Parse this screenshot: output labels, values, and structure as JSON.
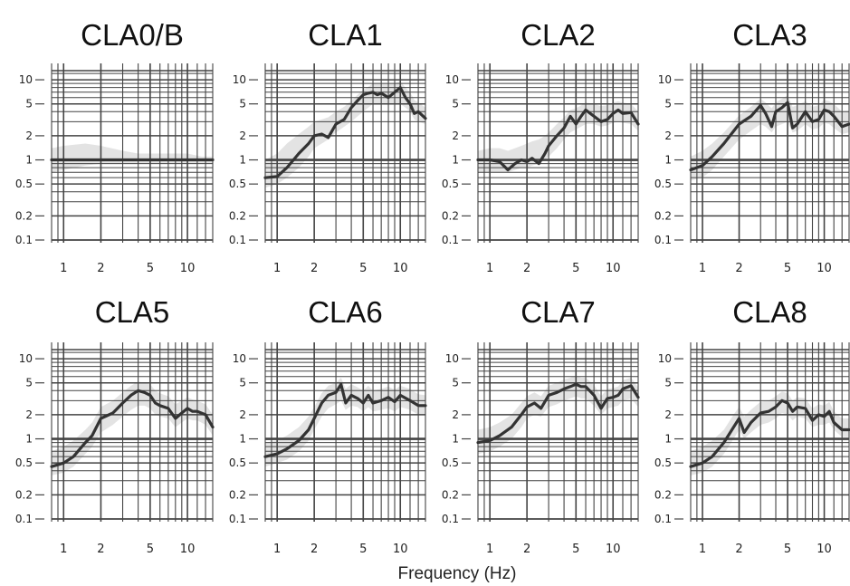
{
  "xlabel": "Frequency (Hz)",
  "chart_data": {
    "type": "line",
    "xlabel": "Frequency (Hz)",
    "xscale": "log",
    "yscale": "log",
    "xlim": [
      0.8,
      16
    ],
    "ylim": [
      0.1,
      13
    ],
    "xticks": [
      1,
      2,
      5,
      10
    ],
    "yticks": [
      0.1,
      0.2,
      0.5,
      1,
      2,
      5,
      10
    ],
    "xtick_labels": [
      "1",
      "2",
      "5",
      "10"
    ],
    "ytick_labels": [
      "0.1",
      "0.2",
      "0.5",
      "1",
      "2",
      "5",
      "10"
    ],
    "grid": true,
    "colors": {
      "line": "#333333",
      "band": "#e3e3e3",
      "grid": "#444444"
    },
    "panels": [
      {
        "title": "CLA0/B",
        "x": [
          0.8,
          1,
          1.5,
          2,
          3,
          4,
          5,
          7,
          10,
          13,
          16
        ],
        "y": [
          1,
          1,
          1,
          1,
          1,
          1,
          1,
          1,
          1,
          1,
          1
        ],
        "band_lo": [
          0.7,
          0.75,
          0.85,
          0.9,
          0.9,
          0.9,
          0.9,
          0.9,
          0.9,
          0.9,
          0.9
        ],
        "band_hi": [
          1.4,
          1.5,
          1.6,
          1.5,
          1.3,
          1.2,
          1.2,
          1.2,
          1.2,
          1.1,
          1.1
        ]
      },
      {
        "title": "CLA1",
        "x": [
          0.8,
          1,
          1.2,
          1.5,
          1.8,
          2,
          2.3,
          2.6,
          3,
          3.5,
          4,
          4.5,
          5,
          5.5,
          6,
          6.5,
          7,
          8,
          9,
          10,
          11,
          12,
          13,
          14,
          16
        ],
        "y": [
          0.6,
          0.62,
          0.8,
          1.2,
          1.6,
          2,
          2.1,
          1.9,
          2.8,
          3.2,
          4.5,
          5.5,
          6.5,
          6.8,
          7,
          6.5,
          6.8,
          6,
          7,
          8,
          6,
          5,
          3.8,
          4,
          3.3
        ],
        "band_lo": [
          0.45,
          0.5,
          0.6,
          0.8,
          1.1,
          1.4,
          1.6,
          1.8,
          2.2,
          2.6,
          3,
          3.5,
          4,
          4.5,
          5,
          5,
          5,
          5,
          5,
          5,
          4.5,
          4,
          3.2,
          3,
          2.8
        ],
        "band_hi": [
          1,
          1.2,
          1.6,
          2.1,
          2.6,
          3,
          3.2,
          3.4,
          4,
          4.6,
          5.5,
          6.5,
          7.5,
          8.2,
          9,
          9,
          9,
          9,
          9,
          9.5,
          8,
          7,
          5.6,
          5.2,
          4.5
        ]
      },
      {
        "title": "CLA2",
        "x": [
          0.8,
          1,
          1.2,
          1.4,
          1.6,
          1.8,
          2,
          2.2,
          2.5,
          2.8,
          3,
          3.5,
          4,
          4.5,
          5,
          5.5,
          6,
          7,
          8,
          9,
          10,
          11,
          12,
          14,
          16
        ],
        "y": [
          1,
          1,
          0.95,
          0.75,
          0.9,
          1,
          0.95,
          1.05,
          0.9,
          1.2,
          1.5,
          2,
          2.5,
          3.5,
          2.8,
          3.5,
          4.2,
          3.5,
          3,
          3.2,
          3.8,
          4.2,
          3.8,
          3.9,
          2.8
        ],
        "band_lo": [
          0.7,
          0.7,
          0.7,
          0.7,
          0.75,
          0.8,
          0.8,
          0.85,
          0.9,
          1,
          1.1,
          1.4,
          1.8,
          2.2,
          2.4,
          2.6,
          2.8,
          2.8,
          2.6,
          2.7,
          2.9,
          3,
          2.9,
          2.8,
          2.3
        ],
        "band_hi": [
          1.3,
          1.4,
          1.4,
          1.3,
          1.4,
          1.5,
          1.6,
          1.7,
          1.8,
          2,
          2.2,
          2.8,
          3.4,
          4.2,
          4.4,
          4.8,
          5.2,
          5,
          4.7,
          4.8,
          5.2,
          5.4,
          5.2,
          5,
          4
        ]
      },
      {
        "title": "CLA3",
        "x": [
          0.8,
          1,
          1.2,
          1.5,
          2,
          2.5,
          3,
          3.3,
          3.7,
          4,
          4.5,
          5,
          5.5,
          6,
          7,
          8,
          9,
          10,
          11,
          12,
          14,
          16
        ],
        "y": [
          0.75,
          0.85,
          1.1,
          1.6,
          2.8,
          3.5,
          4.8,
          3.8,
          2.6,
          4,
          4.5,
          5.2,
          2.5,
          2.8,
          4,
          3,
          3.2,
          4.2,
          4,
          3.5,
          2.6,
          2.8
        ],
        "band_lo": [
          0.55,
          0.6,
          0.75,
          1.1,
          1.8,
          2.3,
          2.8,
          2.6,
          2.2,
          2.6,
          2.8,
          3,
          2.2,
          2.3,
          2.8,
          2.4,
          2.5,
          2.9,
          2.8,
          2.5,
          2.1,
          2.2
        ],
        "band_hi": [
          1.1,
          1.3,
          1.6,
          2.2,
          3.6,
          4.6,
          5.8,
          5.2,
          4.4,
          5.2,
          5.8,
          6.4,
          4.6,
          4.8,
          5.4,
          4.6,
          4.8,
          5.6,
          5.4,
          5,
          4,
          4.1
        ]
      },
      {
        "title": "CLA5",
        "x": [
          0.8,
          1,
          1.2,
          1.5,
          1.7,
          2,
          2.5,
          3,
          3.5,
          4,
          4.5,
          5,
          5.5,
          6,
          7,
          8,
          9,
          10,
          11,
          12,
          14,
          16
        ],
        "y": [
          0.45,
          0.5,
          0.6,
          0.9,
          1.1,
          1.8,
          2.1,
          2.8,
          3.5,
          4,
          3.8,
          3.5,
          2.8,
          2.6,
          2.4,
          1.8,
          2.1,
          2.4,
          2.2,
          2.2,
          2,
          1.4
        ],
        "band_lo": [
          0.35,
          0.38,
          0.45,
          0.65,
          0.8,
          1.2,
          1.5,
          1.9,
          2.3,
          2.6,
          2.6,
          2.4,
          2,
          1.9,
          1.8,
          1.4,
          1.6,
          1.8,
          1.7,
          1.7,
          1.5,
          1.1
        ],
        "band_hi": [
          0.7,
          0.8,
          0.95,
          1.3,
          1.6,
          2.5,
          3,
          3.8,
          4.6,
          5.2,
          5,
          4.8,
          4,
          3.7,
          3.4,
          2.7,
          3,
          3.3,
          3.1,
          3,
          2.7,
          2
        ]
      },
      {
        "title": "CLA6",
        "x": [
          0.8,
          1,
          1.2,
          1.5,
          1.8,
          2,
          2.3,
          2.6,
          3,
          3.3,
          3.6,
          4,
          4.5,
          5,
          5.5,
          6,
          7,
          8,
          9,
          10,
          12,
          14,
          16
        ],
        "y": [
          0.6,
          0.65,
          0.75,
          0.95,
          1.3,
          1.8,
          2.8,
          3.5,
          3.8,
          4.8,
          2.8,
          3.5,
          3.2,
          2.8,
          3.5,
          2.8,
          3,
          3.3,
          2.9,
          3.5,
          3,
          2.6,
          2.6
        ],
        "band_lo": [
          0.45,
          0.5,
          0.55,
          0.7,
          0.95,
          1.3,
          1.9,
          2.4,
          2.7,
          3,
          2.3,
          2.6,
          2.5,
          2.2,
          2.5,
          2.2,
          2.3,
          2.4,
          2.2,
          2.5,
          2.3,
          2,
          2
        ],
        "band_hi": [
          0.9,
          0.95,
          1.1,
          1.4,
          1.9,
          2.5,
          3.7,
          4.6,
          5,
          5.8,
          4.2,
          4.8,
          4.4,
          4,
          4.6,
          4,
          4.2,
          4.5,
          4.1,
          4.6,
          4.2,
          3.6,
          3.5
        ]
      },
      {
        "title": "CLA7",
        "x": [
          0.8,
          1,
          1.2,
          1.5,
          1.8,
          2,
          2.3,
          2.6,
          3,
          3.5,
          4,
          4.5,
          5,
          5.5,
          6,
          7,
          8,
          9,
          10,
          11,
          12,
          14,
          16
        ],
        "y": [
          0.9,
          0.95,
          1.1,
          1.4,
          2,
          2.5,
          2.8,
          2.4,
          3.5,
          3.8,
          4.2,
          4.5,
          4.8,
          4.5,
          4.5,
          3.5,
          2.4,
          3.2,
          3.3,
          3.5,
          4.2,
          4.6,
          3.3
        ],
        "band_lo": [
          0.65,
          0.7,
          0.8,
          1,
          1.4,
          1.8,
          2,
          1.9,
          2.5,
          2.7,
          3,
          3.2,
          3.4,
          3.2,
          3.2,
          2.6,
          2,
          2.4,
          2.5,
          2.6,
          3,
          3.2,
          2.5
        ],
        "band_hi": [
          1.3,
          1.4,
          1.6,
          2,
          2.8,
          3.4,
          3.8,
          3.4,
          4.6,
          5,
          5.5,
          5.8,
          6.2,
          5.8,
          5.8,
          4.7,
          3.4,
          4.2,
          4.3,
          4.5,
          5.4,
          5.8,
          4.4
        ]
      },
      {
        "title": "CLA8",
        "x": [
          0.8,
          1,
          1.2,
          1.5,
          1.8,
          2,
          2.2,
          2.5,
          3,
          3.5,
          4,
          4.5,
          5,
          5.5,
          6,
          7,
          8,
          9,
          10,
          11,
          12,
          14,
          16
        ],
        "y": [
          0.45,
          0.5,
          0.6,
          0.9,
          1.4,
          1.8,
          1.2,
          1.6,
          2.1,
          2.2,
          2.5,
          3,
          2.8,
          2.2,
          2.5,
          2.4,
          1.7,
          2,
          1.9,
          2.2,
          1.6,
          1.3,
          1.3
        ],
        "band_lo": [
          0.35,
          0.38,
          0.45,
          0.65,
          1,
          1.3,
          1,
          1.2,
          1.5,
          1.6,
          1.8,
          2.1,
          2,
          1.7,
          1.9,
          1.8,
          1.4,
          1.5,
          1.5,
          1.6,
          1.3,
          1.05,
          1.05
        ],
        "band_hi": [
          0.7,
          0.8,
          0.95,
          1.3,
          2,
          2.5,
          1.9,
          2.3,
          2.9,
          3,
          3.4,
          3.9,
          3.7,
          3,
          3.3,
          3.2,
          2.4,
          2.7,
          2.6,
          2.9,
          2.2,
          1.8,
          1.8
        ]
      }
    ]
  }
}
